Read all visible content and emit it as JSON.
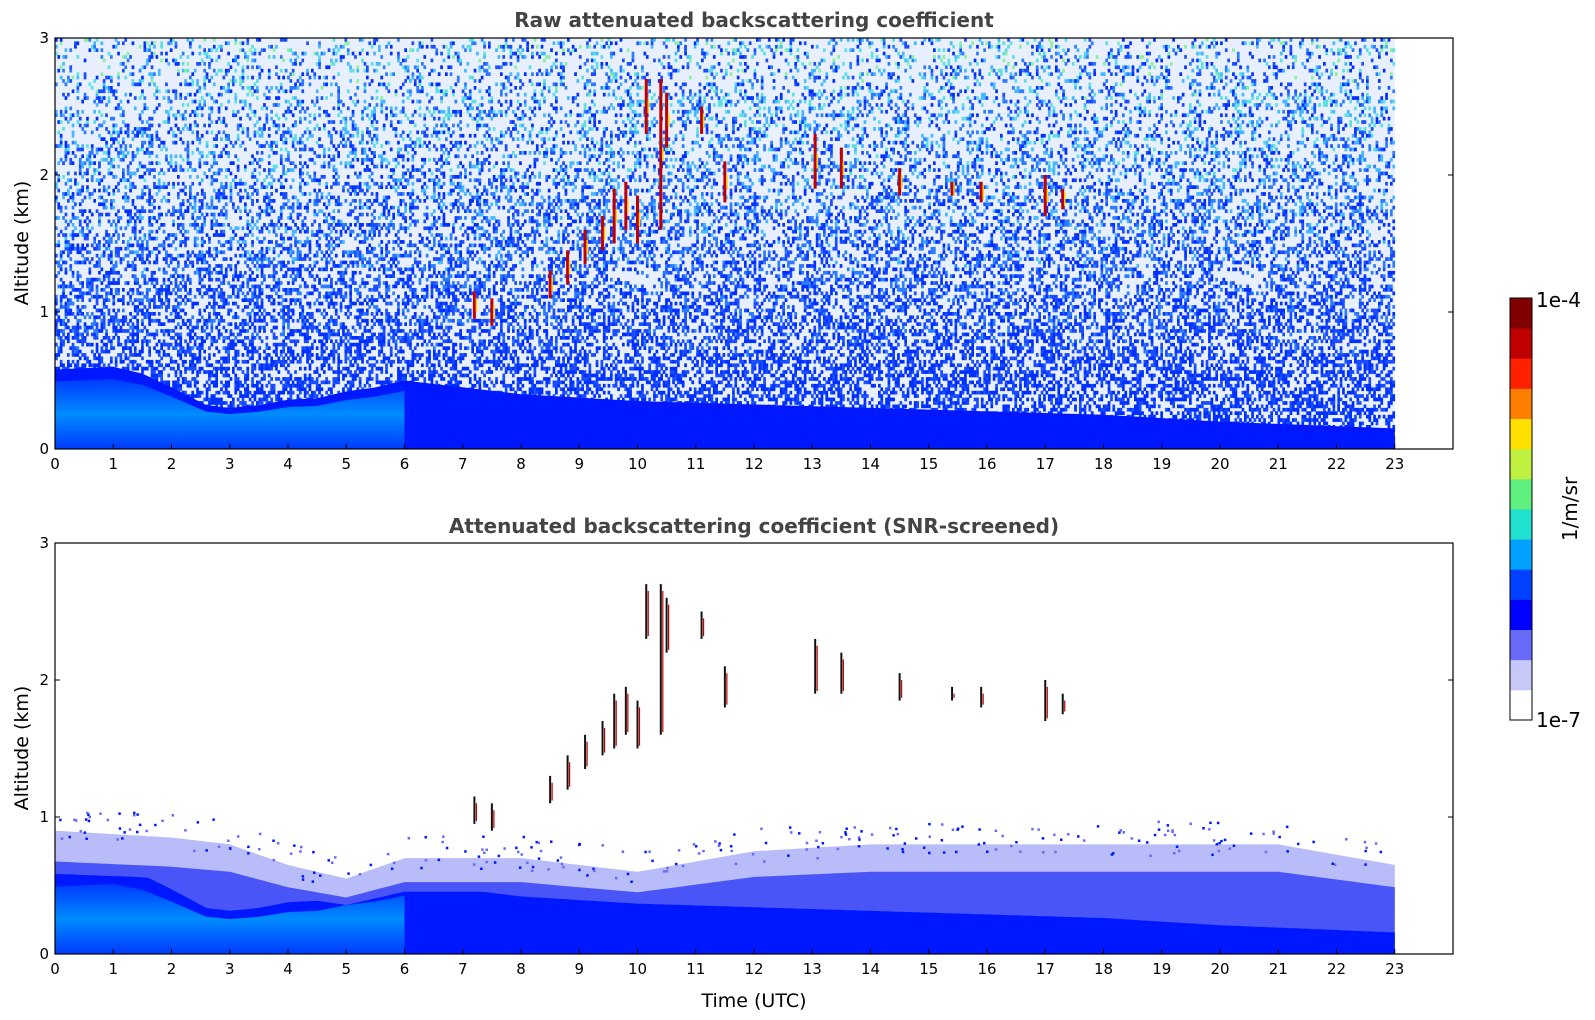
{
  "chart_data": [
    {
      "type": "heatmap",
      "title": "Raw attenuated backscattering coefficient",
      "xlabel": "",
      "ylabel": "Altitude (km)",
      "xlim": [
        0,
        24
      ],
      "ylim": [
        0,
        3
      ],
      "x_ticks": [
        "0",
        "1",
        "2",
        "3",
        "4",
        "5",
        "6",
        "7",
        "8",
        "9",
        "10",
        "11",
        "12",
        "13",
        "14",
        "15",
        "16",
        "17",
        "18",
        "19",
        "20",
        "21",
        "22",
        "23"
      ],
      "y_ticks": [
        "0",
        "1",
        "2",
        "3"
      ],
      "data_extent_hours": [
        0,
        23
      ],
      "boundary_layer_top_km": [
        {
          "t": 0,
          "h": 0.58
        },
        {
          "t": 1,
          "h": 0.6
        },
        {
          "t": 1.5,
          "h": 0.55
        },
        {
          "t": 2,
          "h": 0.45
        },
        {
          "t": 2.6,
          "h": 0.32
        },
        {
          "t": 3,
          "h": 0.3
        },
        {
          "t": 3.5,
          "h": 0.32
        },
        {
          "t": 4,
          "h": 0.36
        },
        {
          "t": 4.5,
          "h": 0.37
        },
        {
          "t": 5,
          "h": 0.42
        },
        {
          "t": 5.5,
          "h": 0.45
        },
        {
          "t": 6,
          "h": 0.5
        },
        {
          "t": 8,
          "h": 0.4
        },
        {
          "t": 10,
          "h": 0.35
        },
        {
          "t": 14,
          "h": 0.3
        },
        {
          "t": 18,
          "h": 0.25
        },
        {
          "t": 20,
          "h": 0.2
        },
        {
          "t": 23,
          "h": 0.15
        }
      ],
      "cloud_segments": [
        {
          "t": 7.2,
          "h0": 0.95,
          "h1": 1.15
        },
        {
          "t": 7.5,
          "h0": 0.9,
          "h1": 1.1
        },
        {
          "t": 8.5,
          "h0": 1.1,
          "h1": 1.3
        },
        {
          "t": 8.8,
          "h0": 1.2,
          "h1": 1.45
        },
        {
          "t": 9.1,
          "h0": 1.35,
          "h1": 1.6
        },
        {
          "t": 9.4,
          "h0": 1.45,
          "h1": 1.7
        },
        {
          "t": 9.6,
          "h0": 1.5,
          "h1": 1.9
        },
        {
          "t": 9.8,
          "h0": 1.6,
          "h1": 1.95
        },
        {
          "t": 10.0,
          "h0": 1.5,
          "h1": 1.85
        },
        {
          "t": 10.15,
          "h0": 2.3,
          "h1": 2.7
        },
        {
          "t": 10.4,
          "h0": 1.6,
          "h1": 2.7
        },
        {
          "t": 10.5,
          "h0": 2.2,
          "h1": 2.6
        },
        {
          "t": 11.1,
          "h0": 2.3,
          "h1": 2.5
        },
        {
          "t": 11.5,
          "h0": 1.8,
          "h1": 2.1
        },
        {
          "t": 13.05,
          "h0": 1.9,
          "h1": 2.3
        },
        {
          "t": 13.5,
          "h0": 1.9,
          "h1": 2.2
        },
        {
          "t": 14.5,
          "h0": 1.85,
          "h1": 2.05
        },
        {
          "t": 15.4,
          "h0": 1.85,
          "h1": 1.95
        },
        {
          "t": 15.9,
          "h0": 1.8,
          "h1": 1.95
        },
        {
          "t": 17.0,
          "h0": 1.7,
          "h1": 2.0
        },
        {
          "t": 17.3,
          "h0": 1.75,
          "h1": 1.9
        }
      ],
      "noise_above_boundary_layer": true
    },
    {
      "type": "heatmap",
      "title": "Attenuated backscattering coefficient (SNR-screened)",
      "xlabel": "Time (UTC)",
      "ylabel": "Altitude (km)",
      "xlim": [
        0,
        24
      ],
      "ylim": [
        0,
        3
      ],
      "x_ticks": [
        "0",
        "1",
        "2",
        "3",
        "4",
        "5",
        "6",
        "7",
        "8",
        "9",
        "10",
        "11",
        "12",
        "13",
        "14",
        "15",
        "16",
        "17",
        "18",
        "19",
        "20",
        "21",
        "22",
        "23"
      ],
      "y_ticks": [
        "0",
        "1",
        "2",
        "3"
      ],
      "data_extent_hours": [
        0,
        23
      ],
      "screened_layer_top_km": [
        {
          "t": 0,
          "h": 0.9
        },
        {
          "t": 2,
          "h": 0.85
        },
        {
          "t": 3,
          "h": 0.8
        },
        {
          "t": 4,
          "h": 0.65
        },
        {
          "t": 5,
          "h": 0.55
        },
        {
          "t": 6,
          "h": 0.7
        },
        {
          "t": 8,
          "h": 0.7
        },
        {
          "t": 10,
          "h": 0.6
        },
        {
          "t": 12,
          "h": 0.75
        },
        {
          "t": 14,
          "h": 0.8
        },
        {
          "t": 18,
          "h": 0.8
        },
        {
          "t": 21,
          "h": 0.8
        },
        {
          "t": 23,
          "h": 0.65
        }
      ],
      "noise_above_boundary_layer": false
    }
  ],
  "colorbar": {
    "label": "1/m/sr",
    "max_label": "1e-4",
    "min_label": "1e-7",
    "colors": [
      "#ffffff",
      "#c8c8f8",
      "#6a6af8",
      "#0000ff",
      "#0040ff",
      "#00a0ff",
      "#20e0d0",
      "#60f080",
      "#c0f040",
      "#ffe000",
      "#ff8000",
      "#ff2000",
      "#c00000",
      "#800000"
    ]
  }
}
